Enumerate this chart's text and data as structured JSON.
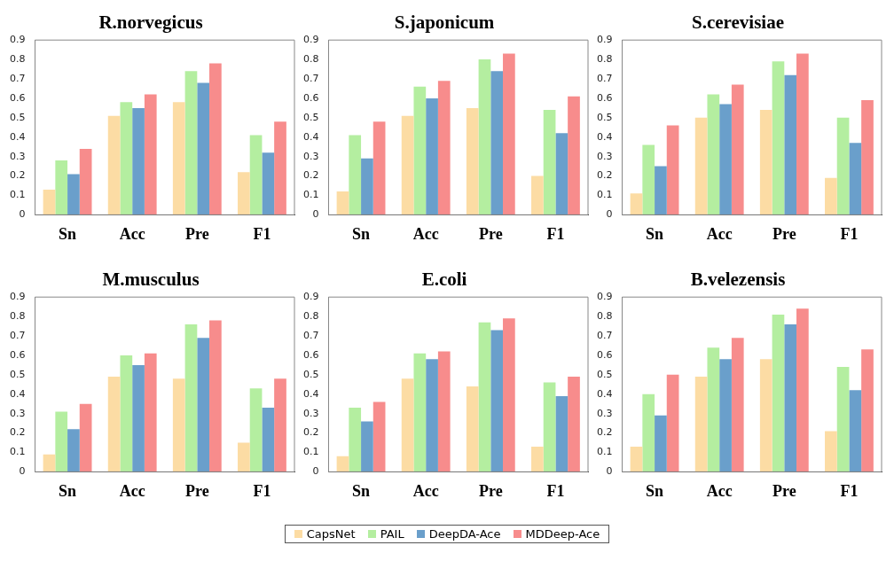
{
  "chart_data": [
    {
      "type": "bar",
      "title": "R.norvegicus",
      "categories": [
        "Sn",
        "Acc",
        "Pre",
        "F1"
      ],
      "ylim": [
        0,
        0.9
      ],
      "yticks": [
        0,
        0.1,
        0.2,
        0.3,
        0.4,
        0.5,
        0.6,
        0.7,
        0.8,
        0.9
      ],
      "legend": "bottom",
      "series": [
        {
          "name": "CapsNet",
          "color": "#fcdca4",
          "values": [
            0.13,
            0.51,
            0.58,
            0.22
          ]
        },
        {
          "name": "PAIL",
          "color": "#b4eea0",
          "values": [
            0.28,
            0.58,
            0.74,
            0.41
          ]
        },
        {
          "name": "DeepDA-Ace",
          "color": "#6a9fcb",
          "values": [
            0.21,
            0.55,
            0.68,
            0.32
          ]
        },
        {
          "name": "MDDeep-Ace",
          "color": "#f78c8c",
          "values": [
            0.34,
            0.62,
            0.78,
            0.48
          ]
        }
      ]
    },
    {
      "type": "bar",
      "title": "S.japonicum",
      "categories": [
        "Sn",
        "Acc",
        "Pre",
        "F1"
      ],
      "ylim": [
        0,
        0.9
      ],
      "yticks": [
        0,
        0.1,
        0.2,
        0.3,
        0.4,
        0.5,
        0.6,
        0.7,
        0.8,
        0.9
      ],
      "series": [
        {
          "color": "#fcdca4",
          "values": [
            0.12,
            0.51,
            0.55,
            0.2
          ]
        },
        {
          "color": "#b4eea0",
          "values": [
            0.41,
            0.66,
            0.8,
            0.54
          ]
        },
        {
          "color": "#6a9fcb",
          "values": [
            0.29,
            0.6,
            0.74,
            0.42
          ]
        },
        {
          "color": "#f78c8c",
          "values": [
            0.48,
            0.69,
            0.83,
            0.61
          ]
        }
      ]
    },
    {
      "type": "bar",
      "title": "S.cerevisiae",
      "categories": [
        "Sn",
        "Acc",
        "Pre",
        "F1"
      ],
      "ylim": [
        0,
        0.9
      ],
      "yticks": [
        0,
        0.1,
        0.2,
        0.3,
        0.4,
        0.5,
        0.6,
        0.7,
        0.8,
        0.9
      ],
      "series": [
        {
          "color": "#fcdca4",
          "values": [
            0.11,
            0.5,
            0.54,
            0.19
          ]
        },
        {
          "color": "#b4eea0",
          "values": [
            0.36,
            0.62,
            0.79,
            0.5
          ]
        },
        {
          "color": "#6a9fcb",
          "values": [
            0.25,
            0.57,
            0.72,
            0.37
          ]
        },
        {
          "color": "#f78c8c",
          "values": [
            0.46,
            0.67,
            0.83,
            0.59
          ]
        }
      ]
    },
    {
      "type": "bar",
      "title": "M.musculus",
      "categories": [
        "Sn",
        "Acc",
        "Pre",
        "F1"
      ],
      "ylim": [
        0,
        0.9
      ],
      "yticks": [
        0,
        0.1,
        0.2,
        0.3,
        0.4,
        0.5,
        0.6,
        0.7,
        0.8,
        0.9
      ],
      "series": [
        {
          "color": "#fcdca4",
          "values": [
            0.09,
            0.49,
            0.48,
            0.15
          ]
        },
        {
          "color": "#b4eea0",
          "values": [
            0.31,
            0.6,
            0.76,
            0.43
          ]
        },
        {
          "color": "#6a9fcb",
          "values": [
            0.22,
            0.55,
            0.69,
            0.33
          ]
        },
        {
          "color": "#f78c8c",
          "values": [
            0.35,
            0.61,
            0.78,
            0.48
          ]
        }
      ]
    },
    {
      "type": "bar",
      "title": "E.coli",
      "categories": [
        "Sn",
        "Acc",
        "Pre",
        "F1"
      ],
      "ylim": [
        0,
        0.9
      ],
      "yticks": [
        0,
        0.1,
        0.2,
        0.3,
        0.4,
        0.5,
        0.6,
        0.7,
        0.8,
        0.9
      ],
      "series": [
        {
          "color": "#fcdca4",
          "values": [
            0.08,
            0.48,
            0.44,
            0.13
          ]
        },
        {
          "color": "#b4eea0",
          "values": [
            0.33,
            0.61,
            0.77,
            0.46
          ]
        },
        {
          "color": "#6a9fcb",
          "values": [
            0.26,
            0.58,
            0.73,
            0.39
          ]
        },
        {
          "color": "#f78c8c",
          "values": [
            0.36,
            0.62,
            0.79,
            0.49
          ]
        }
      ]
    },
    {
      "type": "bar",
      "title": "B.velezensis",
      "categories": [
        "Sn",
        "Acc",
        "Pre",
        "F1"
      ],
      "ylim": [
        0,
        0.9
      ],
      "yticks": [
        0,
        0.1,
        0.2,
        0.3,
        0.4,
        0.5,
        0.6,
        0.7,
        0.8,
        0.9
      ],
      "series": [
        {
          "color": "#fcdca4",
          "values": [
            0.13,
            0.49,
            0.58,
            0.21
          ]
        },
        {
          "color": "#b4eea0",
          "values": [
            0.4,
            0.64,
            0.81,
            0.54
          ]
        },
        {
          "color": "#6a9fcb",
          "values": [
            0.29,
            0.58,
            0.76,
            0.42
          ]
        },
        {
          "color": "#f78c8c",
          "values": [
            0.5,
            0.69,
            0.84,
            0.63
          ]
        }
      ]
    }
  ]
}
